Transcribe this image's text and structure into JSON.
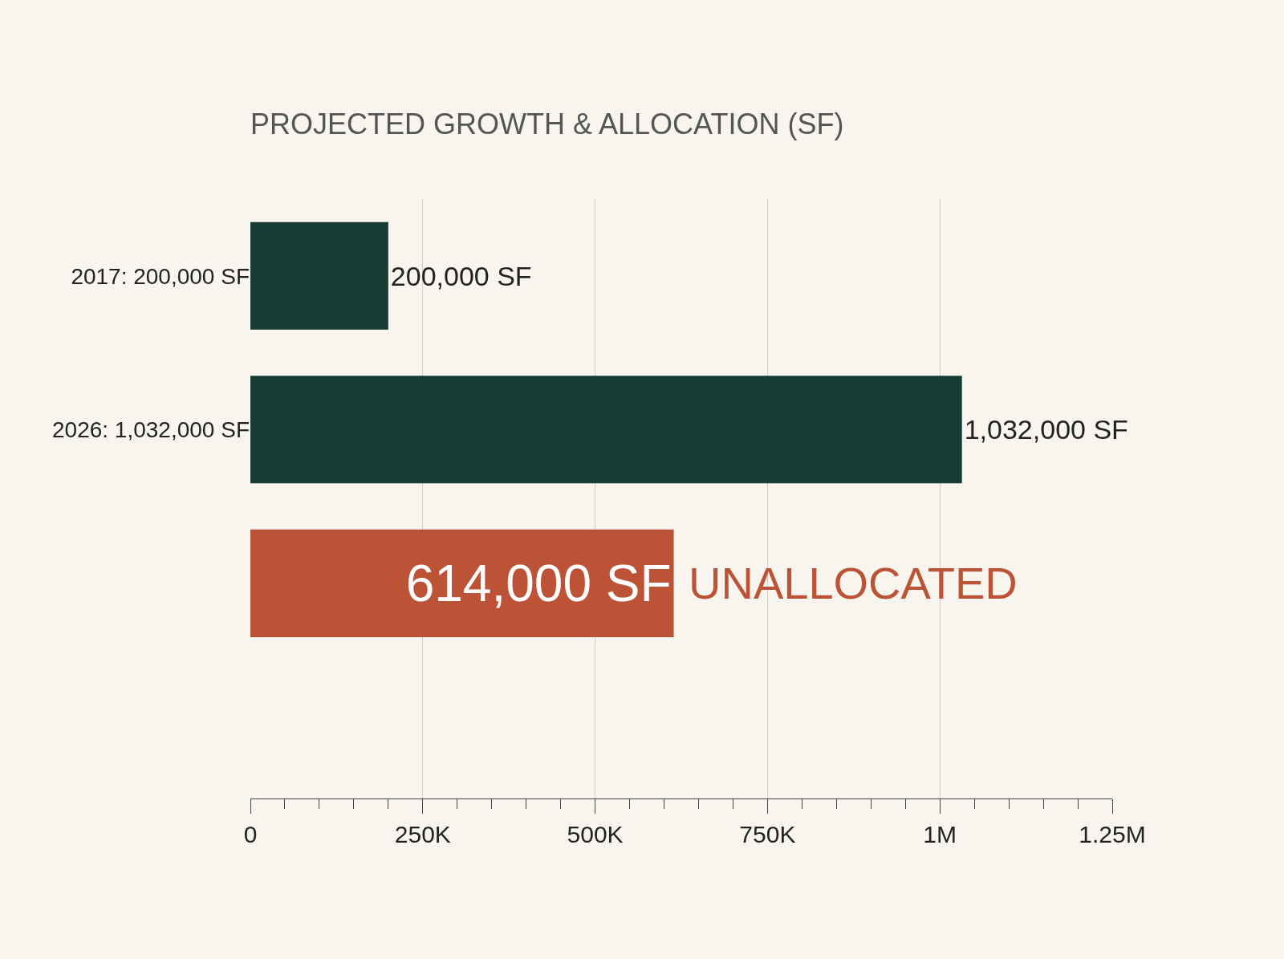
{
  "chart_data": {
    "type": "bar",
    "orientation": "horizontal",
    "title": "PROJECTED GROWTH & ALLOCATION (SF)",
    "categories": [
      "2017: 200,000 SF",
      "2026: 1,032,000 SF",
      null
    ],
    "values": [
      200000,
      1032000,
      614000
    ],
    "colors": [
      "#163d33",
      "#163d33",
      "#bc5236"
    ],
    "value_labels": [
      "200,000 SF",
      "1,032,000 SF",
      "614,000 SF"
    ],
    "annotations": [
      {
        "text": "UNALLOCATED",
        "x": 614000
      }
    ],
    "xlim": [
      0,
      1250000
    ],
    "xticks": [
      0,
      {
        "value": 250000,
        "label": "250K"
      },
      {
        "value": 500000,
        "label": "500K"
      },
      {
        "value": 750000,
        "label": "750K"
      },
      {
        "value": 1000000,
        "label": "1M"
      },
      {
        "value": 1250000,
        "label": "1.25M"
      }
    ],
    "grid": "x"
  }
}
